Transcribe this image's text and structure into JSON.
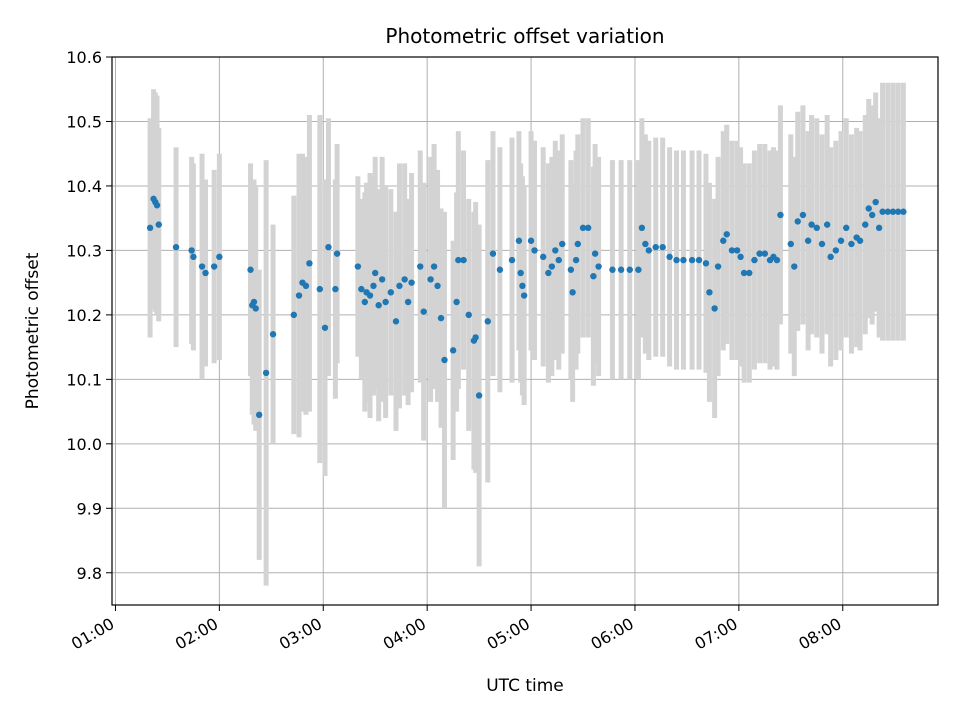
{
  "chart_data": {
    "type": "scatter",
    "title": "Photometric offset variation",
    "xlabel": "UTC time",
    "ylabel": "Photometric offset",
    "x_format": "HH:MM",
    "xlim": [
      "00:58",
      "08:55"
    ],
    "ylim": [
      9.75,
      10.6
    ],
    "x_ticks": [
      "01:00",
      "02:00",
      "03:00",
      "04:00",
      "05:00",
      "06:00",
      "07:00",
      "08:00"
    ],
    "y_ticks": [
      "9.8",
      "9.9",
      "10.0",
      "10.1",
      "10.2",
      "10.3",
      "10.4",
      "10.5",
      "10.6"
    ],
    "grid": true,
    "point_color": "#1f77b4",
    "errorbar_color": "#d3d3d3",
    "points": [
      {
        "x": "01:20",
        "y": 10.335,
        "err": 0.17
      },
      {
        "x": "01:22",
        "y": 10.38,
        "err": 0.17
      },
      {
        "x": "01:23",
        "y": 10.375,
        "err": 0.17
      },
      {
        "x": "01:24",
        "y": 10.37,
        "err": 0.17
      },
      {
        "x": "01:25",
        "y": 10.34,
        "err": 0.15
      },
      {
        "x": "01:35",
        "y": 10.305,
        "err": 0.155
      },
      {
        "x": "01:44",
        "y": 10.3,
        "err": 0.145
      },
      {
        "x": "01:45",
        "y": 10.29,
        "err": 0.145
      },
      {
        "x": "01:50",
        "y": 10.275,
        "err": 0.175
      },
      {
        "x": "01:52",
        "y": 10.265,
        "err": 0.145
      },
      {
        "x": "01:57",
        "y": 10.275,
        "err": 0.15
      },
      {
        "x": "02:00",
        "y": 10.29,
        "err": 0.16
      },
      {
        "x": "02:18",
        "y": 10.27,
        "err": 0.165
      },
      {
        "x": "02:19",
        "y": 10.215,
        "err": 0.17
      },
      {
        "x": "02:20",
        "y": 10.22,
        "err": 0.19
      },
      {
        "x": "02:21",
        "y": 10.21,
        "err": 0.19
      },
      {
        "x": "02:23",
        "y": 10.045,
        "err": 0.225
      },
      {
        "x": "02:27",
        "y": 10.11,
        "err": 0.33
      },
      {
        "x": "02:31",
        "y": 10.17,
        "err": 0.17
      },
      {
        "x": "02:43",
        "y": 10.2,
        "err": 0.185
      },
      {
        "x": "02:46",
        "y": 10.23,
        "err": 0.22
      },
      {
        "x": "02:48",
        "y": 10.25,
        "err": 0.2
      },
      {
        "x": "02:50",
        "y": 10.245,
        "err": 0.2
      },
      {
        "x": "02:52",
        "y": 10.28,
        "err": 0.23
      },
      {
        "x": "02:58",
        "y": 10.24,
        "err": 0.27
      },
      {
        "x": "03:01",
        "y": 10.18,
        "err": 0.23
      },
      {
        "x": "03:03",
        "y": 10.305,
        "err": 0.2
      },
      {
        "x": "03:07",
        "y": 10.24,
        "err": 0.17
      },
      {
        "x": "03:08",
        "y": 10.295,
        "err": 0.17
      },
      {
        "x": "03:20",
        "y": 10.275,
        "err": 0.14
      },
      {
        "x": "03:22",
        "y": 10.24,
        "err": 0.14
      },
      {
        "x": "03:24",
        "y": 10.22,
        "err": 0.17
      },
      {
        "x": "03:25",
        "y": 10.235,
        "err": 0.17
      },
      {
        "x": "03:27",
        "y": 10.23,
        "err": 0.19
      },
      {
        "x": "03:29",
        "y": 10.245,
        "err": 0.17
      },
      {
        "x": "03:30",
        "y": 10.265,
        "err": 0.18
      },
      {
        "x": "03:32",
        "y": 10.215,
        "err": 0.18
      },
      {
        "x": "03:34",
        "y": 10.255,
        "err": 0.19
      },
      {
        "x": "03:36",
        "y": 10.22,
        "err": 0.18
      },
      {
        "x": "03:39",
        "y": 10.235,
        "err": 0.16
      },
      {
        "x": "03:42",
        "y": 10.19,
        "err": 0.17
      },
      {
        "x": "03:44",
        "y": 10.245,
        "err": 0.19
      },
      {
        "x": "03:47",
        "y": 10.255,
        "err": 0.18
      },
      {
        "x": "03:49",
        "y": 10.22,
        "err": 0.16
      },
      {
        "x": "03:51",
        "y": 10.25,
        "err": 0.17
      },
      {
        "x": "03:56",
        "y": 10.275,
        "err": 0.18
      },
      {
        "x": "03:58",
        "y": 10.205,
        "err": 0.2
      },
      {
        "x": "04:02",
        "y": 10.255,
        "err": 0.19
      },
      {
        "x": "04:04",
        "y": 10.275,
        "err": 0.19
      },
      {
        "x": "04:06",
        "y": 10.245,
        "err": 0.18
      },
      {
        "x": "04:08",
        "y": 10.195,
        "err": 0.17
      },
      {
        "x": "04:10",
        "y": 10.13,
        "err": 0.23
      },
      {
        "x": "04:15",
        "y": 10.145,
        "err": 0.17
      },
      {
        "x": "04:17",
        "y": 10.22,
        "err": 0.17
      },
      {
        "x": "04:18",
        "y": 10.285,
        "err": 0.2
      },
      {
        "x": "04:21",
        "y": 10.285,
        "err": 0.17
      },
      {
        "x": "04:24",
        "y": 10.2,
        "err": 0.18
      },
      {
        "x": "04:27",
        "y": 10.16,
        "err": 0.2
      },
      {
        "x": "04:28",
        "y": 10.165,
        "err": 0.21
      },
      {
        "x": "04:30",
        "y": 10.075,
        "err": 0.265
      },
      {
        "x": "04:35",
        "y": 10.19,
        "err": 0.25
      },
      {
        "x": "04:38",
        "y": 10.295,
        "err": 0.19
      },
      {
        "x": "04:42",
        "y": 10.27,
        "err": 0.19
      },
      {
        "x": "04:49",
        "y": 10.285,
        "err": 0.19
      },
      {
        "x": "04:53",
        "y": 10.315,
        "err": 0.17
      },
      {
        "x": "04:54",
        "y": 10.265,
        "err": 0.17
      },
      {
        "x": "04:55",
        "y": 10.245,
        "err": 0.17
      },
      {
        "x": "04:56",
        "y": 10.23,
        "err": 0.17
      },
      {
        "x": "05:00",
        "y": 10.315,
        "err": 0.17
      },
      {
        "x": "05:02",
        "y": 10.3,
        "err": 0.17
      },
      {
        "x": "05:07",
        "y": 10.29,
        "err": 0.17
      },
      {
        "x": "05:10",
        "y": 10.265,
        "err": 0.17
      },
      {
        "x": "05:12",
        "y": 10.275,
        "err": 0.17
      },
      {
        "x": "05:14",
        "y": 10.3,
        "err": 0.17
      },
      {
        "x": "05:16",
        "y": 10.285,
        "err": 0.17
      },
      {
        "x": "05:18",
        "y": 10.31,
        "err": 0.17
      },
      {
        "x": "05:23",
        "y": 10.27,
        "err": 0.17
      },
      {
        "x": "05:24",
        "y": 10.235,
        "err": 0.17
      },
      {
        "x": "05:26",
        "y": 10.285,
        "err": 0.17
      },
      {
        "x": "05:27",
        "y": 10.31,
        "err": 0.17
      },
      {
        "x": "05:30",
        "y": 10.335,
        "err": 0.17
      },
      {
        "x": "05:33",
        "y": 10.335,
        "err": 0.17
      },
      {
        "x": "05:36",
        "y": 10.26,
        "err": 0.17
      },
      {
        "x": "05:37",
        "y": 10.295,
        "err": 0.17
      },
      {
        "x": "05:39",
        "y": 10.275,
        "err": 0.17
      },
      {
        "x": "05:47",
        "y": 10.27,
        "err": 0.17
      },
      {
        "x": "05:52",
        "y": 10.27,
        "err": 0.17
      },
      {
        "x": "05:57",
        "y": 10.27,
        "err": 0.17
      },
      {
        "x": "06:02",
        "y": 10.27,
        "err": 0.17
      },
      {
        "x": "06:04",
        "y": 10.335,
        "err": 0.17
      },
      {
        "x": "06:06",
        "y": 10.31,
        "err": 0.17
      },
      {
        "x": "06:08",
        "y": 10.3,
        "err": 0.17
      },
      {
        "x": "06:12",
        "y": 10.305,
        "err": 0.17
      },
      {
        "x": "06:16",
        "y": 10.305,
        "err": 0.17
      },
      {
        "x": "06:20",
        "y": 10.29,
        "err": 0.17
      },
      {
        "x": "06:24",
        "y": 10.285,
        "err": 0.17
      },
      {
        "x": "06:28",
        "y": 10.285,
        "err": 0.17
      },
      {
        "x": "06:33",
        "y": 10.285,
        "err": 0.17
      },
      {
        "x": "06:37",
        "y": 10.285,
        "err": 0.17
      },
      {
        "x": "06:41",
        "y": 10.28,
        "err": 0.17
      },
      {
        "x": "06:43",
        "y": 10.235,
        "err": 0.17
      },
      {
        "x": "06:46",
        "y": 10.21,
        "err": 0.17
      },
      {
        "x": "06:48",
        "y": 10.275,
        "err": 0.17
      },
      {
        "x": "06:51",
        "y": 10.315,
        "err": 0.17
      },
      {
        "x": "06:53",
        "y": 10.325,
        "err": 0.17
      },
      {
        "x": "06:56",
        "y": 10.3,
        "err": 0.17
      },
      {
        "x": "06:59",
        "y": 10.3,
        "err": 0.17
      },
      {
        "x": "07:01",
        "y": 10.29,
        "err": 0.17
      },
      {
        "x": "07:03",
        "y": 10.265,
        "err": 0.17
      },
      {
        "x": "07:06",
        "y": 10.265,
        "err": 0.17
      },
      {
        "x": "07:09",
        "y": 10.285,
        "err": 0.17
      },
      {
        "x": "07:12",
        "y": 10.295,
        "err": 0.17
      },
      {
        "x": "07:15",
        "y": 10.295,
        "err": 0.17
      },
      {
        "x": "07:18",
        "y": 10.285,
        "err": 0.17
      },
      {
        "x": "07:20",
        "y": 10.29,
        "err": 0.17
      },
      {
        "x": "07:22",
        "y": 10.285,
        "err": 0.17
      },
      {
        "x": "07:24",
        "y": 10.355,
        "err": 0.17
      },
      {
        "x": "07:30",
        "y": 10.31,
        "err": 0.17
      },
      {
        "x": "07:32",
        "y": 10.275,
        "err": 0.17
      },
      {
        "x": "07:34",
        "y": 10.345,
        "err": 0.17
      },
      {
        "x": "07:37",
        "y": 10.355,
        "err": 0.17
      },
      {
        "x": "07:40",
        "y": 10.315,
        "err": 0.17
      },
      {
        "x": "07:42",
        "y": 10.34,
        "err": 0.17
      },
      {
        "x": "07:45",
        "y": 10.335,
        "err": 0.17
      },
      {
        "x": "07:48",
        "y": 10.31,
        "err": 0.17
      },
      {
        "x": "07:51",
        "y": 10.34,
        "err": 0.17
      },
      {
        "x": "07:53",
        "y": 10.29,
        "err": 0.17
      },
      {
        "x": "07:56",
        "y": 10.3,
        "err": 0.17
      },
      {
        "x": "07:59",
        "y": 10.315,
        "err": 0.17
      },
      {
        "x": "08:02",
        "y": 10.335,
        "err": 0.17
      },
      {
        "x": "08:05",
        "y": 10.31,
        "err": 0.17
      },
      {
        "x": "08:08",
        "y": 10.32,
        "err": 0.17
      },
      {
        "x": "08:10",
        "y": 10.315,
        "err": 0.17
      },
      {
        "x": "08:13",
        "y": 10.34,
        "err": 0.17
      },
      {
        "x": "08:15",
        "y": 10.365,
        "err": 0.17
      },
      {
        "x": "08:17",
        "y": 10.355,
        "err": 0.17
      },
      {
        "x": "08:19",
        "y": 10.375,
        "err": 0.17
      },
      {
        "x": "08:21",
        "y": 10.335,
        "err": 0.17
      },
      {
        "x": "08:23",
        "y": 10.36,
        "err": 0.2
      },
      {
        "x": "08:26",
        "y": 10.36,
        "err": 0.2
      },
      {
        "x": "08:29",
        "y": 10.36,
        "err": 0.2
      },
      {
        "x": "08:32",
        "y": 10.36,
        "err": 0.2
      },
      {
        "x": "08:35",
        "y": 10.36,
        "err": 0.2
      }
    ]
  }
}
